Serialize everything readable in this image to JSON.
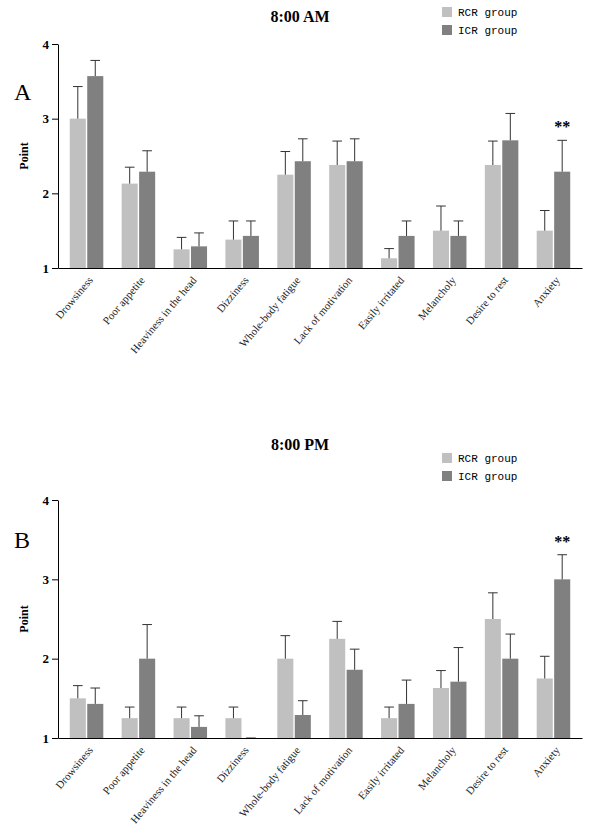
{
  "chart_data": [
    {
      "type": "bar",
      "panel": "A",
      "title": "8:00 AM",
      "y_label": "Point",
      "categories": [
        "Drowsiness",
        "Poor appetite",
        "Heaviness in the head",
        "Dizziness",
        "Whole-body fatigue",
        "Lack of motivation",
        "Easily irritated",
        "Melancholy",
        "Desire to rest",
        "Anxiety"
      ],
      "series": [
        {
          "name": "RCR group",
          "color": "#c0c0c0",
          "values": [
            3.0,
            2.13,
            1.25,
            1.38,
            2.25,
            2.38,
            1.13,
            1.5,
            2.38,
            1.5
          ],
          "errors": [
            0.43,
            0.22,
            0.16,
            0.25,
            0.31,
            0.32,
            0.13,
            0.33,
            0.32,
            0.27
          ]
        },
        {
          "name": "ICR group",
          "color": "#808080",
          "values": [
            3.57,
            2.29,
            1.29,
            1.43,
            2.43,
            2.43,
            1.43,
            1.43,
            2.71,
            2.29
          ],
          "errors": [
            0.21,
            0.28,
            0.18,
            0.2,
            0.3,
            0.3,
            0.2,
            0.2,
            0.36,
            0.42
          ]
        }
      ],
      "ylim": [
        1,
        4
      ],
      "yticks": [
        1,
        2,
        3,
        4
      ],
      "legend": "top-right",
      "annotations": [
        {
          "text": "**",
          "category": "Anxiety",
          "series": "ICR group"
        }
      ]
    },
    {
      "type": "bar",
      "panel": "B",
      "title": "8:00 PM",
      "y_label": "Point",
      "categories": [
        "Drowsiness",
        "Poor appetite",
        "Heaviness in the head",
        "Dizziness",
        "Whole-body fatigue",
        "Lack of motivation",
        "Easily irritated",
        "Melancholy",
        "Desire to rest",
        "Anxiety"
      ],
      "series": [
        {
          "name": "RCR group",
          "color": "#c0c0c0",
          "values": [
            1.5,
            1.25,
            1.25,
            1.25,
            2.0,
            2.25,
            1.25,
            1.63,
            2.5,
            1.75
          ],
          "errors": [
            0.16,
            0.14,
            0.14,
            0.14,
            0.29,
            0.22,
            0.14,
            0.22,
            0.33,
            0.28
          ]
        },
        {
          "name": "ICR group",
          "color": "#808080",
          "values": [
            1.43,
            2.0,
            1.14,
            1.0,
            1.29,
            1.86,
            1.43,
            1.71,
            2.0,
            3.0
          ],
          "errors": [
            0.2,
            0.43,
            0.14,
            0.0,
            0.18,
            0.26,
            0.3,
            0.43,
            0.31,
            0.31
          ]
        }
      ],
      "ylim": [
        1,
        4
      ],
      "yticks": [
        1,
        2,
        3,
        4
      ],
      "legend": "top-right",
      "annotations": [
        {
          "text": "**",
          "category": "Anxiety",
          "series": "ICR group"
        }
      ]
    }
  ]
}
